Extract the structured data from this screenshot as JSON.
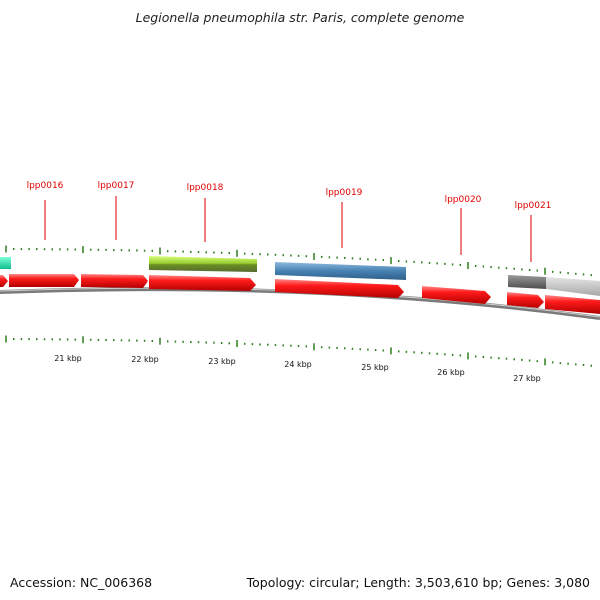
{
  "title": "Legionella pneumophila str. Paris, complete genome",
  "footer": {
    "accession": "Accession: NC_006368",
    "summary": "Topology: circular; Length: 3,503,610 bp; Genes: 3,080"
  },
  "colors": {
    "cds": "#ff0000",
    "backbone": "#888888",
    "ticks": "#2e7d1e",
    "label": "#e00000",
    "feature_teal": "#1de9b6",
    "feature_green": "#9acd32",
    "feature_blue": "#4682b4",
    "feature_gray": "#999999"
  },
  "genes": [
    {
      "name": "lpp0016"
    },
    {
      "name": "lpp0017"
    },
    {
      "name": "lpp0018"
    },
    {
      "name": "lpp0019"
    },
    {
      "name": "lpp0020"
    },
    {
      "name": "lpp0021"
    }
  ],
  "scale": [
    "21 kbp",
    "22 kbp",
    "23 kbp",
    "24 kbp",
    "25 kbp",
    "26 kbp",
    "27 kbp"
  ]
}
